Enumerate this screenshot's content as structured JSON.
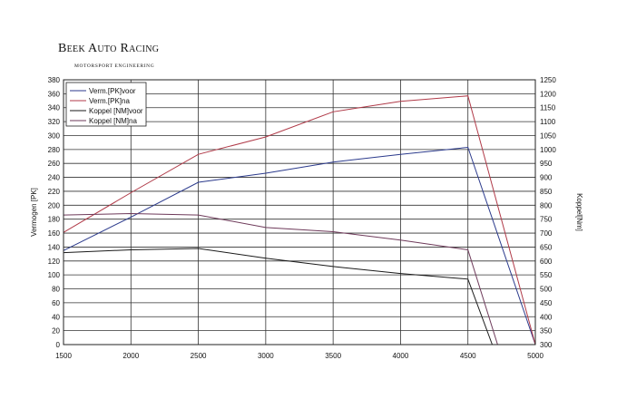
{
  "logo": {
    "brand": "Beek Auto Racing",
    "tagline": "MOTORSPORT ENGINEERING"
  },
  "chart_data": {
    "type": "line",
    "xlabel": "",
    "ylabel": "Vermogen [PK]",
    "y2label": "Koppel[Nm]",
    "xlim": [
      1500,
      5000
    ],
    "ylim": [
      0,
      380
    ],
    "y2lim": [
      300,
      1250
    ],
    "xticks": [
      1500,
      2000,
      2500,
      3000,
      3500,
      4000,
      4500,
      5000
    ],
    "yticks": [
      0,
      20,
      40,
      60,
      80,
      100,
      120,
      140,
      160,
      180,
      200,
      220,
      240,
      260,
      280,
      300,
      320,
      340,
      360,
      380
    ],
    "y2ticks": [
      300,
      350,
      400,
      450,
      500,
      550,
      600,
      650,
      700,
      750,
      800,
      850,
      900,
      950,
      1000,
      1050,
      1100,
      1150,
      1200,
      1250
    ],
    "grid": true,
    "legend_position": "top-left",
    "series": [
      {
        "name": "Verm.[PK]voor",
        "color": "#2b3a8c",
        "axis": "left",
        "x": [
          1500,
          2000,
          2500,
          3000,
          3500,
          4000,
          4500,
          5000
        ],
        "y": [
          135,
          183,
          233,
          246,
          262,
          273,
          283,
          0
        ]
      },
      {
        "name": "Verm.[PK]na",
        "color": "#b03a48",
        "axis": "left",
        "x": [
          1500,
          2000,
          2500,
          3000,
          3500,
          4000,
          4500,
          5000
        ],
        "y": [
          161,
          218,
          273,
          298,
          334,
          349,
          357,
          0
        ]
      },
      {
        "name": "Koppel [NM]voor",
        "color": "#1a1a1a",
        "axis": "right",
        "x": [
          1500,
          2000,
          2500,
          3000,
          3500,
          4000,
          4500,
          4680
        ],
        "y": [
          630,
          640,
          645,
          610,
          580,
          555,
          535,
          300
        ]
      },
      {
        "name": "Koppel [NM]na",
        "color": "#6e3a5a",
        "axis": "right",
        "x": [
          1500,
          2000,
          2500,
          3000,
          3500,
          4000,
          4500,
          4720
        ],
        "y": [
          765,
          770,
          765,
          720,
          705,
          675,
          640,
          300
        ]
      }
    ]
  }
}
